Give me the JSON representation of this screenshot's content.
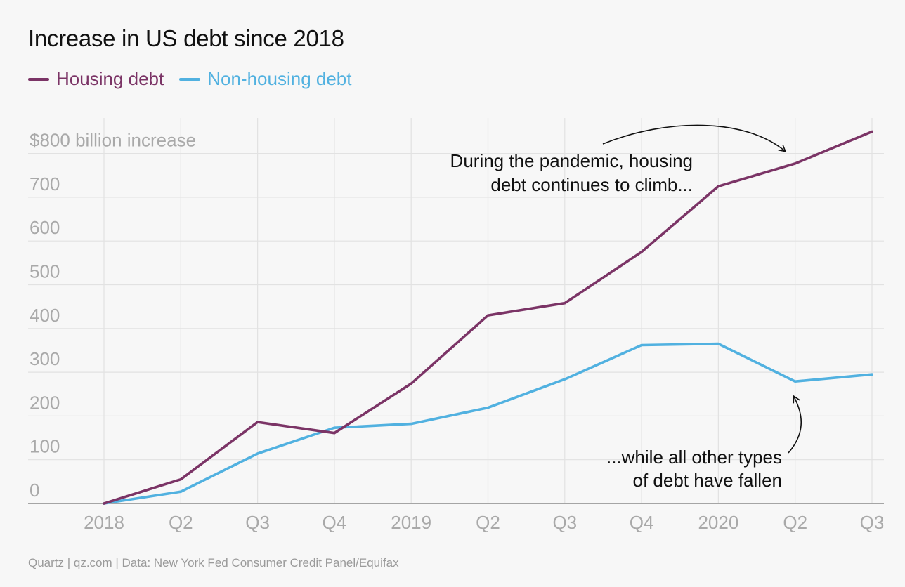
{
  "title": "Increase in US debt since 2018",
  "source": "Quartz | qz.com | Data: New York Fed Consumer Credit Panel/Equifax",
  "colors": {
    "housing": "#7b3466",
    "nonhousing": "#51b1e0",
    "grid": "#e2e2e2",
    "axis_text": "#a9a9a9",
    "axis_line": "#8a8a8a",
    "annotation": "#111111"
  },
  "annotations": [
    {
      "lines": [
        "During the pandemic, housing",
        "debt continues to climb..."
      ]
    },
    {
      "lines": [
        "...while all other types",
        "of debt have fallen"
      ]
    }
  ],
  "chart_data": {
    "type": "line",
    "title": "Increase in US debt since 2018",
    "ylabel": "",
    "top_tick_label": "$800 billion increase",
    "categories": [
      "2018",
      "Q2",
      "Q3",
      "Q4",
      "2019",
      "Q2",
      "Q3",
      "Q4",
      "2020",
      "Q2",
      "Q3"
    ],
    "yticks": [
      0,
      100,
      200,
      300,
      400,
      500,
      600,
      700,
      800
    ],
    "ylim": [
      0,
      850
    ],
    "grid": true,
    "legend_position": "top-left",
    "series": [
      {
        "name": "Housing debt",
        "color_key": "housing",
        "values": [
          0,
          55,
          186,
          161,
          274,
          430,
          458,
          575,
          725,
          777,
          850
        ]
      },
      {
        "name": "Non-housing debt",
        "color_key": "nonhousing",
        "values": [
          0,
          27,
          114,
          173,
          182,
          219,
          284,
          362,
          365,
          279,
          295
        ]
      }
    ]
  }
}
